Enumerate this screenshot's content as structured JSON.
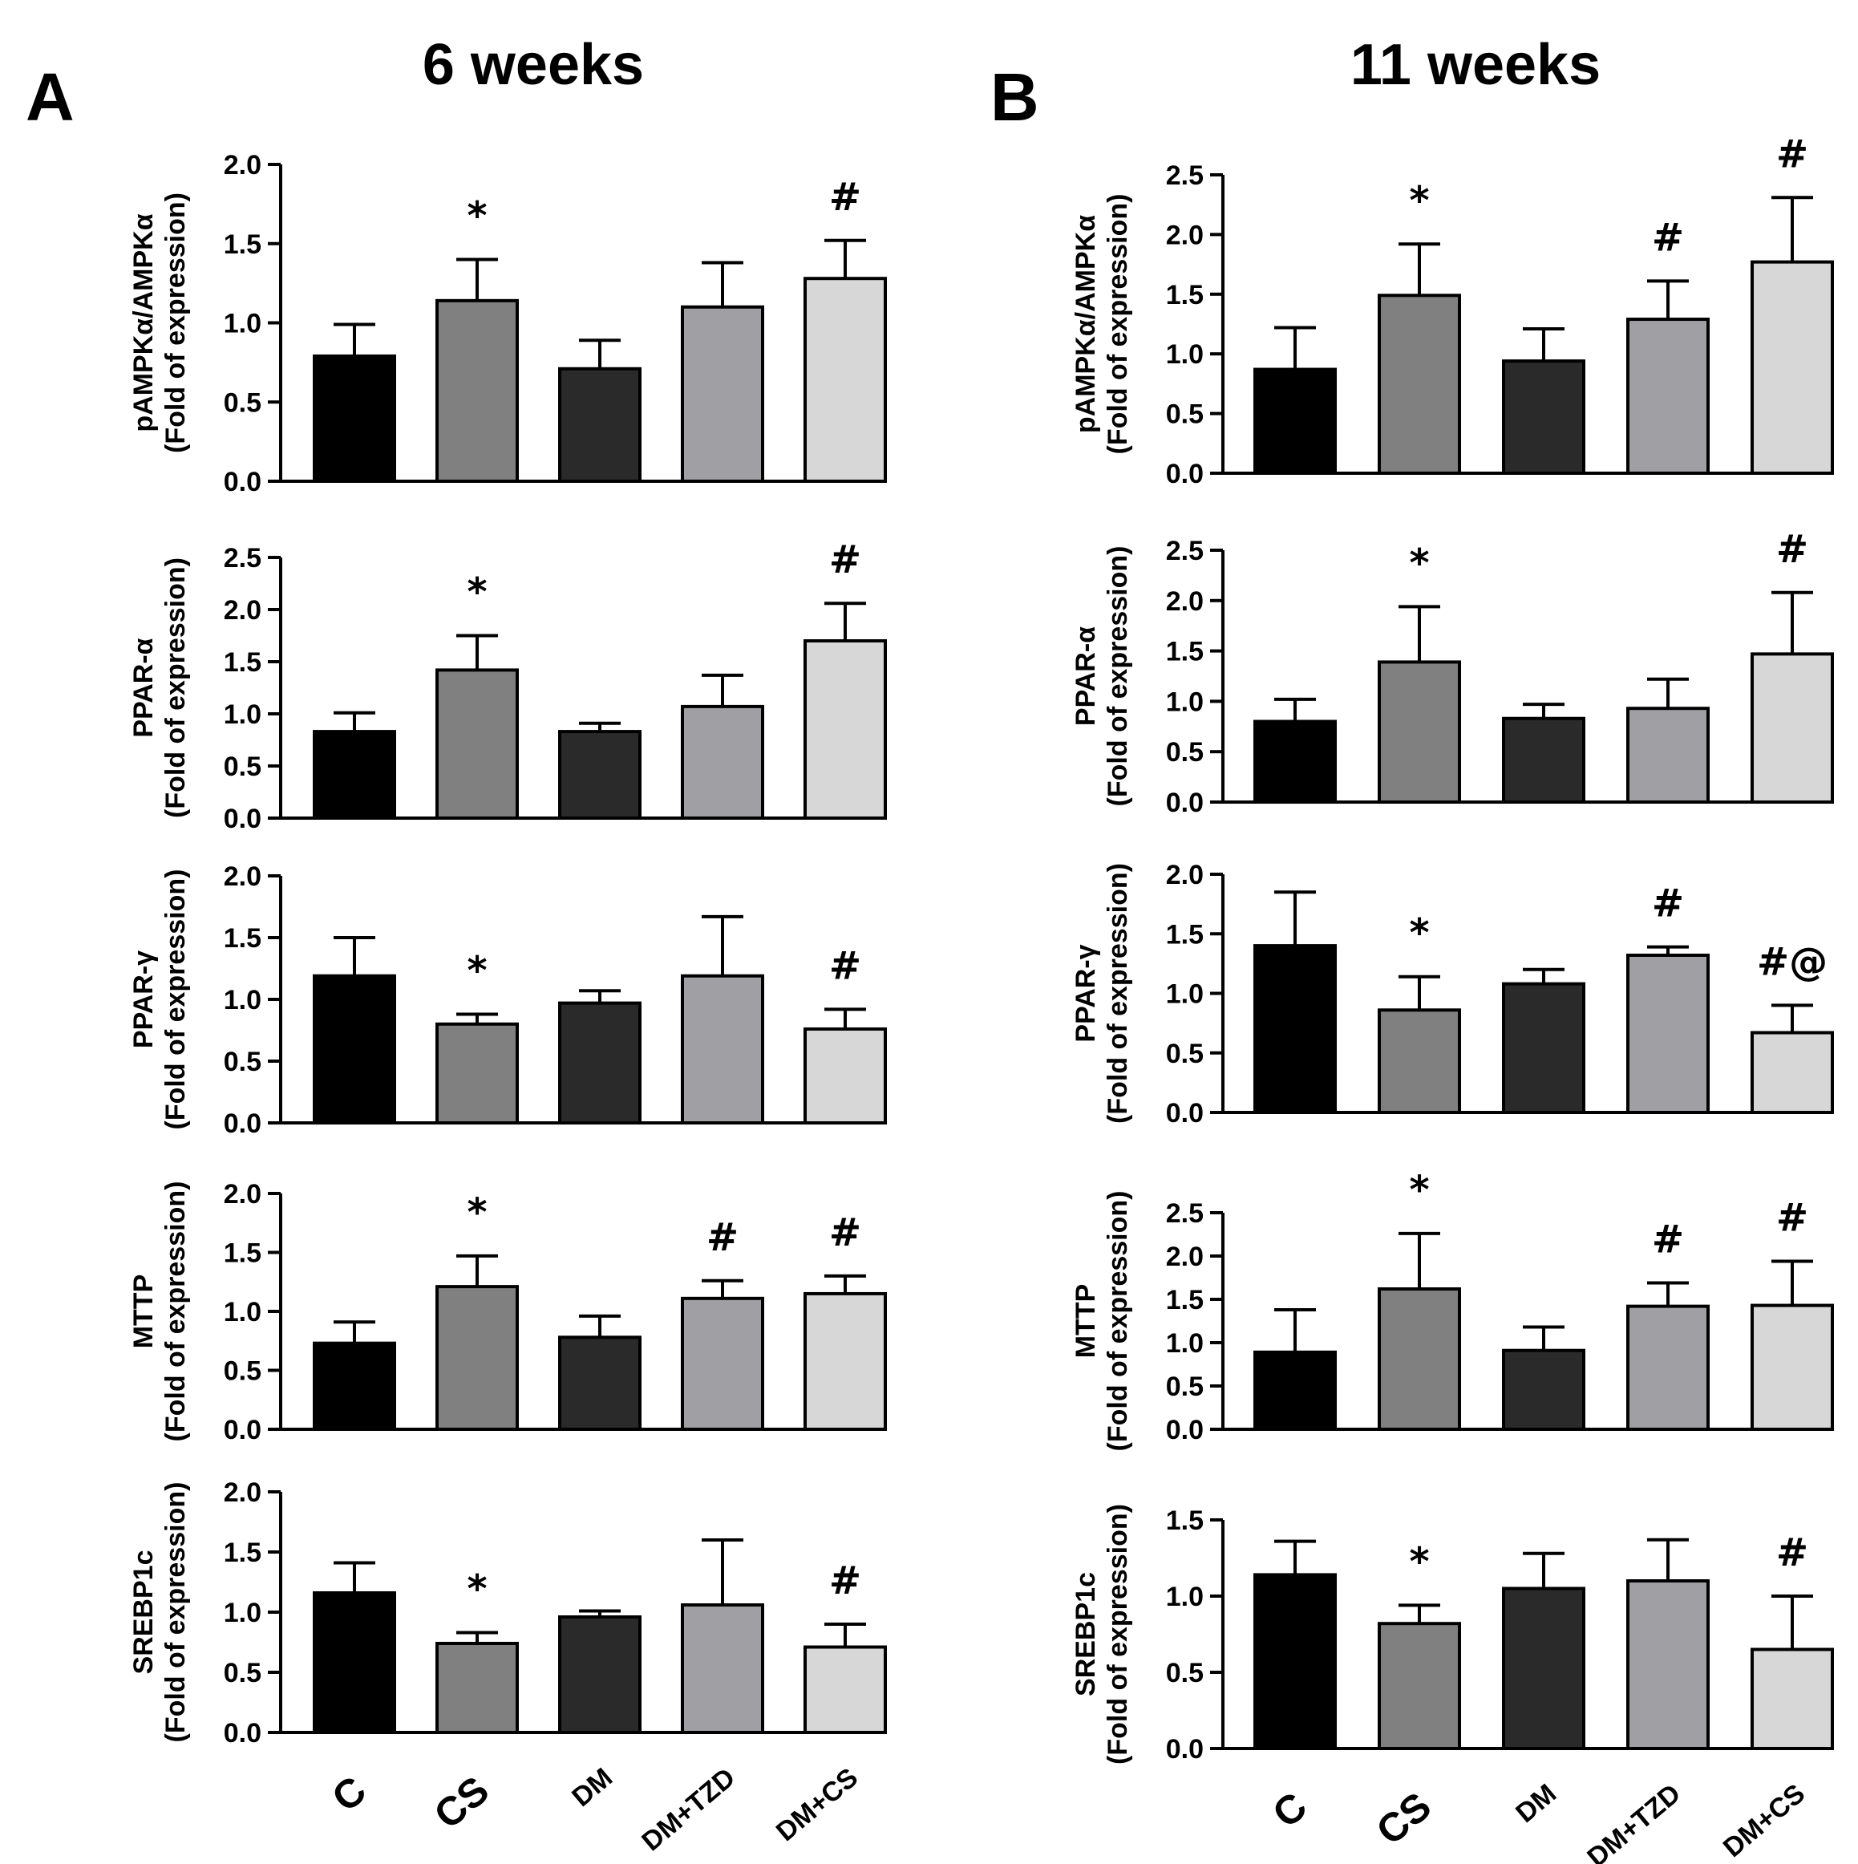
{
  "panels": [
    {
      "letter": "A",
      "title": "6 weeks"
    },
    {
      "letter": "B",
      "title": "11 weeks"
    }
  ],
  "categories": [
    "C",
    "CS",
    "DM",
    "DM+TZD",
    "DM+CS"
  ],
  "bar_colors": [
    "#000000",
    "#808080",
    "#2a2a2a",
    "#a0a0a4",
    "#d7d7d7"
  ],
  "chart_data": [
    {
      "type": "bar",
      "panel": "A",
      "ylabel": "pAMPKα/AMPKα",
      "ylabel2": "(Fold of expression)",
      "ylim": [
        0,
        2.0
      ],
      "yticks": [
        "0.0",
        "0.5",
        "1.0",
        "1.5",
        "2.0"
      ],
      "categories": [
        "C",
        "CS",
        "DM",
        "DM+TZD",
        "DM+CS"
      ],
      "values": [
        0.79,
        1.14,
        0.71,
        1.1,
        1.28
      ],
      "errors": [
        0.2,
        0.26,
        0.18,
        0.28,
        0.24
      ],
      "annotations": [
        "",
        "*",
        "",
        "",
        "#"
      ]
    },
    {
      "type": "bar",
      "panel": "A",
      "ylabel": "PPAR-α",
      "ylabel2": "(Fold of expression)",
      "ylim": [
        0,
        2.5
      ],
      "yticks": [
        "0.0",
        "0.5",
        "1.0",
        "1.5",
        "2.0",
        "2.5"
      ],
      "categories": [
        "C",
        "CS",
        "DM",
        "DM+TZD",
        "DM+CS"
      ],
      "values": [
        0.83,
        1.42,
        0.83,
        1.07,
        1.7
      ],
      "errors": [
        0.18,
        0.33,
        0.08,
        0.3,
        0.36
      ],
      "annotations": [
        "",
        "*",
        "",
        "",
        "#"
      ]
    },
    {
      "type": "bar",
      "panel": "A",
      "ylabel": "PPAR-γ",
      "ylabel2": "(Fold of expression)",
      "ylim": [
        0,
        2.0
      ],
      "yticks": [
        "0.0",
        "0.5",
        "1.0",
        "1.5",
        "2.0"
      ],
      "categories": [
        "C",
        "CS",
        "DM",
        "DM+TZD",
        "DM+CS"
      ],
      "values": [
        1.19,
        0.8,
        0.97,
        1.19,
        0.76
      ],
      "errors": [
        0.31,
        0.08,
        0.1,
        0.48,
        0.16
      ],
      "annotations": [
        "",
        "*",
        "",
        "",
        "#"
      ]
    },
    {
      "type": "bar",
      "panel": "A",
      "ylabel": "MTTP",
      "ylabel2": "(Fold of expression)",
      "ylim": [
        0,
        2.0
      ],
      "yticks": [
        "0.0",
        "0.5",
        "1.0",
        "1.5",
        "2.0"
      ],
      "categories": [
        "C",
        "CS",
        "DM",
        "DM+TZD",
        "DM+CS"
      ],
      "values": [
        0.73,
        1.21,
        0.78,
        1.11,
        1.15
      ],
      "errors": [
        0.18,
        0.26,
        0.18,
        0.15,
        0.15
      ],
      "annotations": [
        "",
        "*",
        "",
        "#",
        "#"
      ]
    },
    {
      "type": "bar",
      "panel": "A",
      "ylabel": "SREBP1c",
      "ylabel2": "(Fold of expression)",
      "ylim": [
        0,
        2.0
      ],
      "yticks": [
        "0.0",
        "0.5",
        "1.0",
        "1.5",
        "2.0"
      ],
      "categories": [
        "C",
        "CS",
        "DM",
        "DM+TZD",
        "DM+CS"
      ],
      "values": [
        1.16,
        0.74,
        0.96,
        1.06,
        0.71
      ],
      "errors": [
        0.25,
        0.09,
        0.05,
        0.54,
        0.19
      ],
      "annotations": [
        "",
        "*",
        "",
        "",
        "#"
      ]
    },
    {
      "type": "bar",
      "panel": "B",
      "ylabel": "pAMPKα/AMPKα",
      "ylabel2": "(Fold of expression)",
      "ylim": [
        0,
        2.5
      ],
      "yticks": [
        "0.0",
        "0.5",
        "1.0",
        "1.5",
        "2.0",
        "2.5"
      ],
      "categories": [
        "C",
        "CS",
        "DM",
        "DM+TZD",
        "DM+CS"
      ],
      "values": [
        0.87,
        1.49,
        0.94,
        1.29,
        1.77
      ],
      "errors": [
        0.35,
        0.43,
        0.27,
        0.32,
        0.54
      ],
      "annotations": [
        "",
        "*",
        "",
        "#",
        "#"
      ]
    },
    {
      "type": "bar",
      "panel": "B",
      "ylabel": "PPAR-α",
      "ylabel2": "(Fold of expression)",
      "ylim": [
        0,
        2.5
      ],
      "yticks": [
        "0.0",
        "0.5",
        "1.0",
        "1.5",
        "2.0",
        "2.5"
      ],
      "categories": [
        "C",
        "CS",
        "DM",
        "DM+TZD",
        "DM+CS"
      ],
      "values": [
        0.8,
        1.39,
        0.83,
        0.93,
        1.47
      ],
      "errors": [
        0.22,
        0.55,
        0.14,
        0.29,
        0.61
      ],
      "annotations": [
        "",
        "*",
        "",
        "",
        "#"
      ]
    },
    {
      "type": "bar",
      "panel": "B",
      "ylabel": "PPAR-γ",
      "ylabel2": "(Fold of expression)",
      "ylim": [
        0,
        2.0
      ],
      "yticks": [
        "0.0",
        "0.5",
        "1.0",
        "1.5",
        "2.0"
      ],
      "categories": [
        "C",
        "CS",
        "DM",
        "DM+TZD",
        "DM+CS"
      ],
      "values": [
        1.4,
        0.86,
        1.08,
        1.32,
        0.67
      ],
      "errors": [
        0.45,
        0.28,
        0.12,
        0.07,
        0.23
      ],
      "annotations": [
        "",
        "*",
        "",
        "#",
        "#@"
      ]
    },
    {
      "type": "bar",
      "panel": "B",
      "ylabel": "MTTP",
      "ylabel2": "(Fold of expression)",
      "ylim": [
        0,
        2.5
      ],
      "yticks": [
        "0.0",
        "0.5",
        "1.0",
        "1.5",
        "2.0",
        "2.5"
      ],
      "categories": [
        "C",
        "CS",
        "DM",
        "DM+TZD",
        "DM+CS"
      ],
      "values": [
        0.89,
        1.62,
        0.91,
        1.42,
        1.43
      ],
      "errors": [
        0.49,
        0.64,
        0.27,
        0.27,
        0.51
      ],
      "annotations": [
        "",
        "*",
        "",
        "#",
        "#"
      ]
    },
    {
      "type": "bar",
      "panel": "B",
      "ylabel": "SREBP1c",
      "ylabel2": "(Fold of expression)",
      "ylim": [
        0,
        1.5
      ],
      "yticks": [
        "0.0",
        "0.5",
        "1.0",
        "1.5"
      ],
      "categories": [
        "C",
        "CS",
        "DM",
        "DM+TZD",
        "DM+CS"
      ],
      "values": [
        1.14,
        0.82,
        1.05,
        1.1,
        0.65
      ],
      "errors": [
        0.22,
        0.12,
        0.23,
        0.27,
        0.35
      ],
      "annotations": [
        "",
        "*",
        "",
        "",
        "#"
      ]
    }
  ]
}
